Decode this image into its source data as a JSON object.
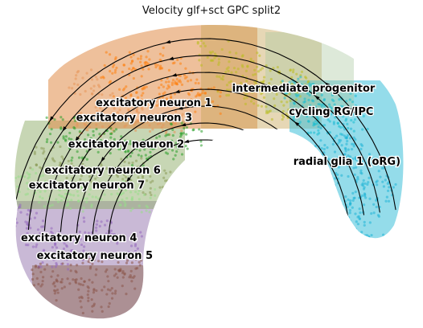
{
  "chart_data": {
    "type": "scatter",
    "title": "Velocity glf+sct GPC split2",
    "xlabel": "",
    "ylabel": "",
    "axes_visible": false,
    "grid": false,
    "legend": "on data",
    "overlay": "velocity streamlines with arrowheads",
    "xlim": [
      0,
      1
    ],
    "ylim": [
      0,
      1
    ],
    "series": [
      {
        "label": "intermediate progenitor",
        "color": "#bcbd22",
        "label_x": 0.75,
        "label_y": 0.77,
        "points": [
          [
            0.52,
            0.9
          ],
          [
            0.6,
            0.86
          ],
          [
            0.67,
            0.82
          ],
          [
            0.72,
            0.8
          ],
          [
            0.57,
            0.8
          ],
          [
            0.64,
            0.76
          ],
          [
            0.7,
            0.72
          ]
        ]
      },
      {
        "label": "cycling RG/IPC",
        "color": "#17becf",
        "label_x": 0.82,
        "label_y": 0.69,
        "points": [
          [
            0.74,
            0.78
          ],
          [
            0.79,
            0.75
          ],
          [
            0.84,
            0.72
          ],
          [
            0.8,
            0.66
          ],
          [
            0.76,
            0.7
          ],
          [
            0.87,
            0.68
          ]
        ]
      },
      {
        "label": "radial glia 1 (oRG)",
        "color": "#1fb5d6",
        "label_x": 0.86,
        "label_y": 0.52,
        "points": [
          [
            0.83,
            0.62
          ],
          [
            0.88,
            0.57
          ],
          [
            0.92,
            0.5
          ],
          [
            0.86,
            0.45
          ],
          [
            0.9,
            0.38
          ],
          [
            0.88,
            0.3
          ],
          [
            0.85,
            0.36
          ],
          [
            0.94,
            0.44
          ],
          [
            0.82,
            0.55
          ],
          [
            0.91,
            0.25
          ]
        ]
      },
      {
        "label": "excitatory neuron 1",
        "color": "#ff7f0e",
        "label_x": 0.37,
        "label_y": 0.72,
        "points": [
          [
            0.28,
            0.86
          ],
          [
            0.35,
            0.88
          ],
          [
            0.42,
            0.84
          ],
          [
            0.3,
            0.78
          ],
          [
            0.38,
            0.76
          ],
          [
            0.45,
            0.8
          ],
          [
            0.5,
            0.74
          ]
        ]
      },
      {
        "label": "excitatory neuron 3",
        "color": "#e8955a",
        "label_x": 0.32,
        "label_y": 0.67,
        "points": [
          [
            0.2,
            0.8
          ],
          [
            0.25,
            0.72
          ],
          [
            0.3,
            0.68
          ],
          [
            0.22,
            0.66
          ],
          [
            0.35,
            0.7
          ],
          [
            0.4,
            0.66
          ]
        ]
      },
      {
        "label": "excitatory neuron 2",
        "color": "#2ca02c",
        "label_x": 0.3,
        "label_y": 0.58,
        "points": [
          [
            0.14,
            0.64
          ],
          [
            0.19,
            0.58
          ],
          [
            0.26,
            0.6
          ],
          [
            0.33,
            0.56
          ],
          [
            0.4,
            0.58
          ],
          [
            0.45,
            0.62
          ]
        ]
      },
      {
        "label": "excitatory neuron 6",
        "color": "#8c9c5a",
        "label_x": 0.24,
        "label_y": 0.49,
        "points": [
          [
            0.1,
            0.54
          ],
          [
            0.15,
            0.5
          ],
          [
            0.22,
            0.48
          ],
          [
            0.3,
            0.5
          ],
          [
            0.38,
            0.46
          ]
        ]
      },
      {
        "label": "excitatory neuron 7",
        "color": "#98df8a",
        "label_x": 0.2,
        "label_y": 0.44,
        "points": [
          [
            0.06,
            0.46
          ],
          [
            0.11,
            0.42
          ],
          [
            0.18,
            0.4
          ],
          [
            0.26,
            0.42
          ],
          [
            0.33,
            0.4
          ]
        ]
      },
      {
        "label": "excitatory neuron 4",
        "color": "#9467bd",
        "label_x": 0.18,
        "label_y": 0.26,
        "points": [
          [
            0.05,
            0.34
          ],
          [
            0.09,
            0.28
          ],
          [
            0.15,
            0.24
          ],
          [
            0.22,
            0.3
          ],
          [
            0.3,
            0.26
          ],
          [
            0.12,
            0.2
          ]
        ]
      },
      {
        "label": "excitatory neuron 5",
        "color": "#8c564b",
        "label_x": 0.22,
        "label_y": 0.2,
        "points": [
          [
            0.1,
            0.14
          ],
          [
            0.16,
            0.1
          ],
          [
            0.22,
            0.06
          ],
          [
            0.28,
            0.12
          ],
          [
            0.2,
            0.16
          ],
          [
            0.32,
            0.18
          ]
        ]
      }
    ]
  }
}
